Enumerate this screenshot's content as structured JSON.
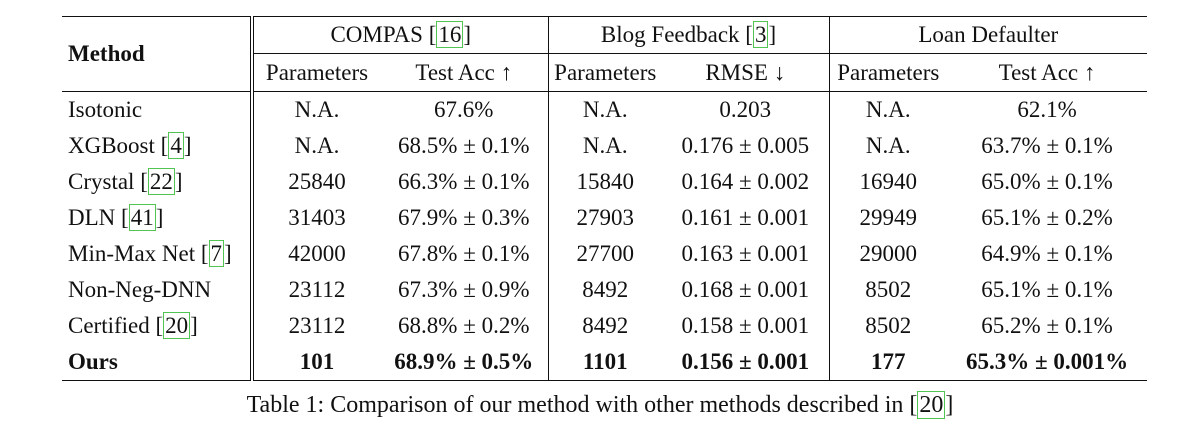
{
  "table": {
    "method_header": "Method",
    "groups": [
      {
        "name": "COMPAS",
        "cite": "16"
      },
      {
        "name": "Blog Feedback",
        "cite": "3"
      },
      {
        "name": "Loan Defaulter",
        "cite": ""
      }
    ],
    "subheaders": [
      "Parameters",
      "Test Acc ↑",
      "Parameters",
      "RMSE ↓",
      "Parameters",
      "Test Acc ↑"
    ],
    "rows": [
      {
        "method": "Isotonic",
        "cite": "",
        "cells": [
          "N.A.",
          "67.6%",
          "N.A.",
          "0.203",
          "N.A.",
          "62.1%"
        ]
      },
      {
        "method": "XGBoost",
        "cite": "4",
        "cells": [
          "N.A.",
          "68.5% ± 0.1%",
          "N.A.",
          "0.176 ± 0.005",
          "N.A.",
          "63.7% ± 0.1%"
        ]
      },
      {
        "method": "Crystal",
        "cite": "22",
        "cells": [
          "25840",
          "66.3% ± 0.1%",
          "15840",
          "0.164 ± 0.002",
          "16940",
          "65.0% ± 0.1%"
        ]
      },
      {
        "method": "DLN",
        "cite": "41",
        "cells": [
          "31403",
          "67.9% ± 0.3%",
          "27903",
          "0.161 ± 0.001",
          "29949",
          "65.1% ± 0.2%"
        ]
      },
      {
        "method": "Min-Max Net",
        "cite": "7",
        "cells": [
          "42000",
          "67.8% ± 0.1%",
          "27700",
          "0.163 ± 0.001",
          "29000",
          "64.9% ± 0.1%"
        ]
      },
      {
        "method": "Non-Neg-DNN",
        "cite": "",
        "cells": [
          "23112",
          "67.3% ± 0.9%",
          "8492",
          "0.168 ± 0.001",
          "8502",
          "65.1% ± 0.1%"
        ]
      },
      {
        "method": "Certified",
        "cite": "20",
        "cells": [
          "23112",
          "68.8% ± 0.2%",
          "8492",
          "0.158 ± 0.001",
          "8502",
          "65.2% ± 0.1%"
        ]
      },
      {
        "method": "Ours",
        "cite": "",
        "cells": [
          "101",
          "68.9% ± 0.5%",
          "1101",
          "0.156 ± 0.001",
          "177",
          "65.3% ± 0.001%"
        ]
      }
    ]
  },
  "caption": {
    "text": "Table 1: Comparison of our method with other methods described in",
    "cite": "20"
  },
  "colors": {
    "text": "#111111",
    "rule": "#111111",
    "citation_box": "#52c452"
  }
}
